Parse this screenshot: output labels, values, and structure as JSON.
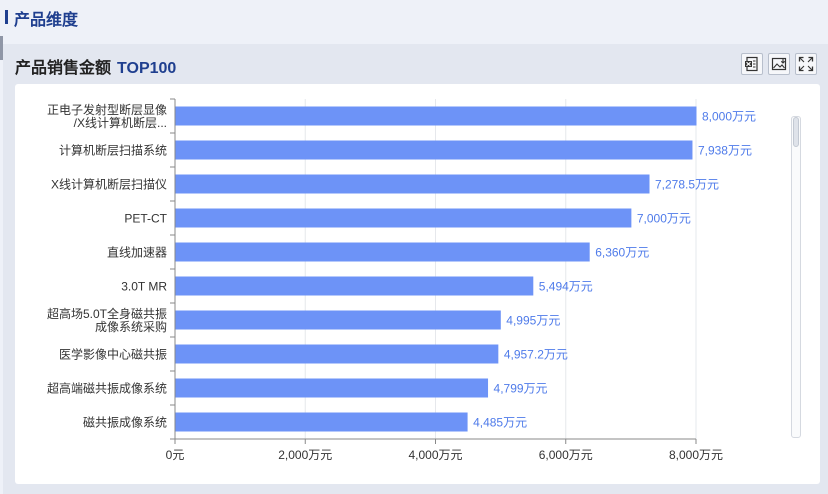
{
  "section": {
    "title": "产品维度"
  },
  "panel": {
    "title": "产品销售金额",
    "subtitle": "TOP100",
    "tools": {
      "export_excel": "export-excel-icon",
      "save_image": "save-image-icon",
      "fullscreen": "fullscreen-icon"
    }
  },
  "colors": {
    "bar": "#6d93f7",
    "label": "#4f7bea",
    "grid": "#e6e8ec",
    "axis": "#888888",
    "text": "#333333"
  },
  "chart_data": {
    "type": "bar",
    "orientation": "horizontal",
    "categories": [
      [
        "正电子发射型断层显像",
        "/X线计算机断层..."
      ],
      [
        "计算机断层扫描系统"
      ],
      [
        "X线计算机断层扫描仪"
      ],
      [
        "PET-CT"
      ],
      [
        "直线加速器"
      ],
      [
        "3.0T MR"
      ],
      [
        "超高场5.0T全身磁共振",
        "成像系统采购"
      ],
      [
        "医学影像中心磁共振"
      ],
      [
        "超高端磁共振成像系统"
      ],
      [
        "磁共振成像系统"
      ]
    ],
    "values": [
      8000,
      7938,
      7278.5,
      7000,
      6360,
      5494,
      4995,
      4957.2,
      4799,
      4485
    ],
    "value_labels": [
      "8,000万元",
      "7,938万元",
      "7,278.5万元",
      "7,000万元",
      "6,360万元",
      "5,494万元",
      "4,995万元",
      "4,957.2万元",
      "4,799万元",
      "4,485万元"
    ],
    "xlim": [
      0,
      8000
    ],
    "x_ticks": [
      0,
      2000,
      4000,
      6000,
      8000
    ],
    "x_tick_labels": [
      "0元",
      "2,000万元",
      "4,000万元",
      "6,000万元",
      "8,000万元"
    ],
    "grid": true
  }
}
